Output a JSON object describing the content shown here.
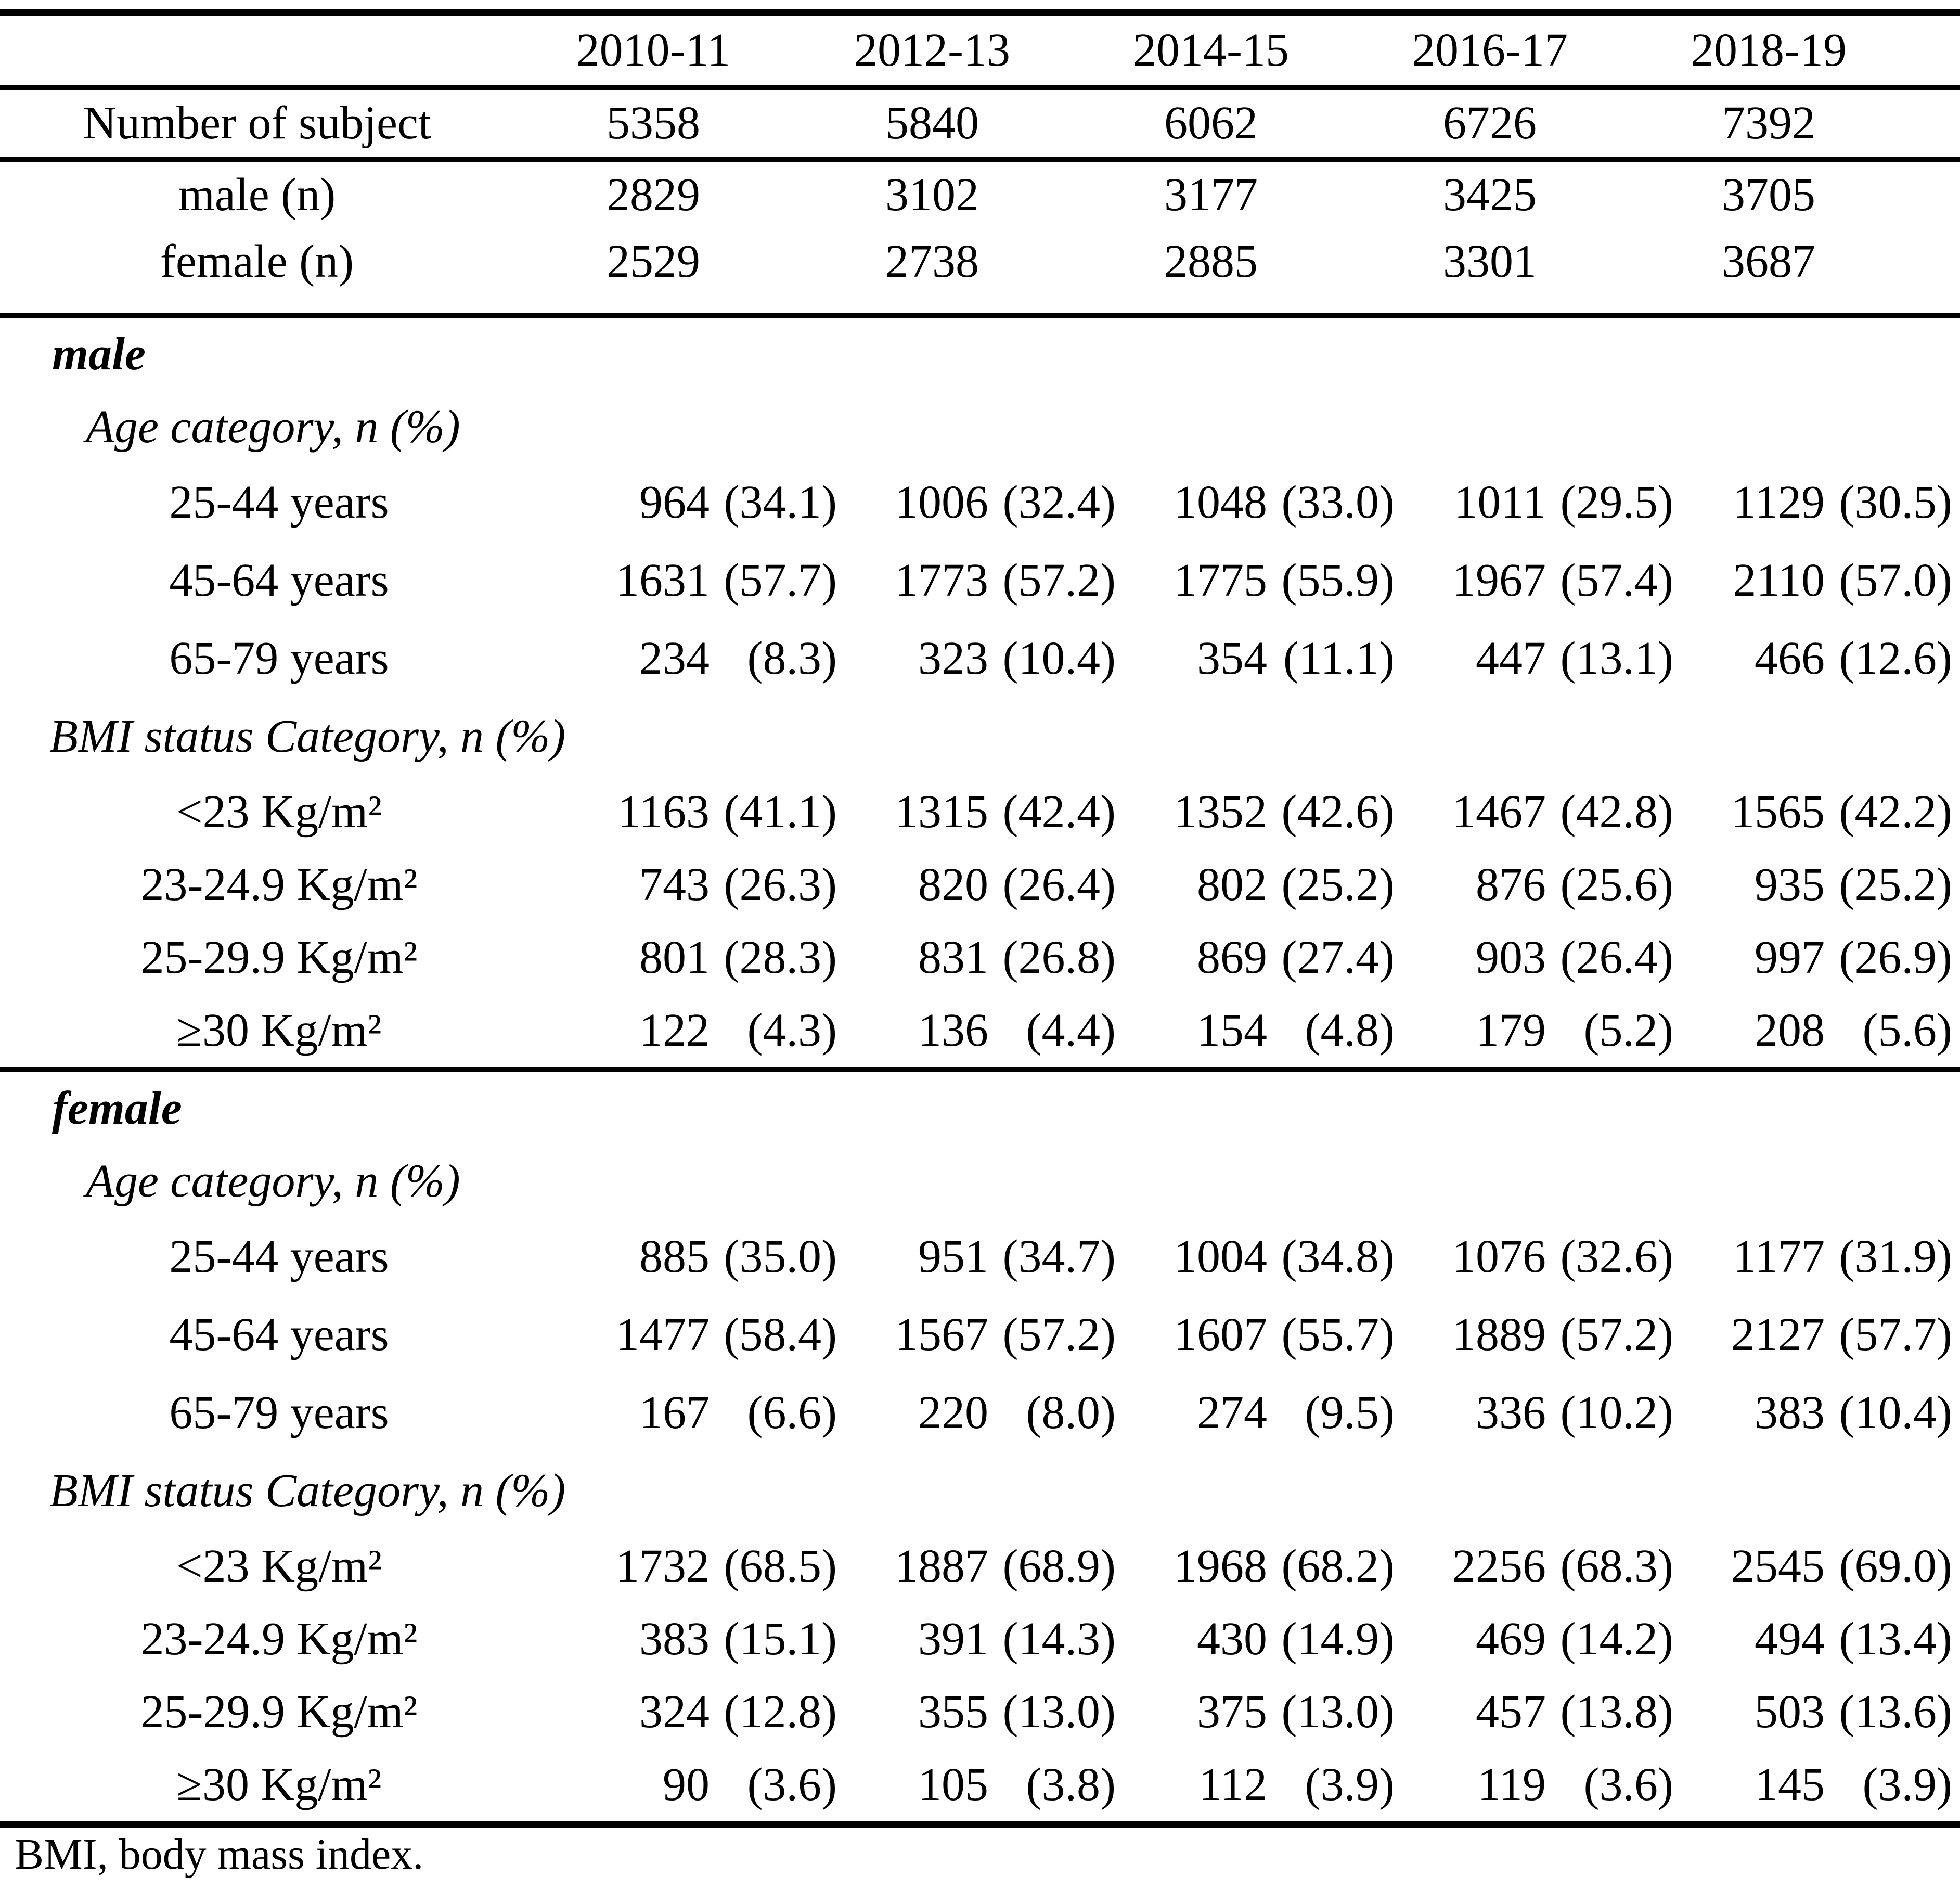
{
  "table": {
    "col_headers": [
      "2010-11",
      "2012-13",
      "2014-15",
      "2016-17",
      "2018-19"
    ],
    "summary_rows": [
      {
        "label": "Number of subject",
        "values": [
          "5358",
          "5840",
          "6062",
          "6726",
          "7392"
        ]
      },
      {
        "label": "male (n)",
        "values": [
          "2829",
          "3102",
          "3177",
          "3425",
          "3705"
        ]
      },
      {
        "label": "female (n)",
        "values": [
          "2529",
          "2738",
          "2885",
          "3301",
          "3687"
        ]
      }
    ],
    "sections": [
      {
        "title": "male",
        "groups": [
          {
            "heading": "Age category, n (%)",
            "rows": [
              {
                "label": "25-44 years",
                "n": [
                  "964",
                  "1006",
                  "1048",
                  "1011",
                  "1129"
                ],
                "pct": [
                  "(34.1)",
                  "(32.4)",
                  "(33.0)",
                  "(29.5)",
                  "(30.5)"
                ]
              },
              {
                "label": "45-64 years",
                "n": [
                  "1631",
                  "1773",
                  "1775",
                  "1967",
                  "2110"
                ],
                "pct": [
                  "(57.7)",
                  "(57.2)",
                  "(55.9)",
                  "(57.4)",
                  "(57.0)"
                ]
              },
              {
                "label": "65-79 years",
                "n": [
                  "234",
                  "323",
                  "354",
                  "447",
                  "466"
                ],
                "pct": [
                  "(8.3)",
                  "(10.4)",
                  "(11.1)",
                  "(13.1)",
                  "(12.6)"
                ]
              }
            ]
          },
          {
            "heading": "BMI status Category, n (%)",
            "rows": [
              {
                "label": "<23 Kg/m²",
                "n": [
                  "1163",
                  "1315",
                  "1352",
                  "1467",
                  "1565"
                ],
                "pct": [
                  "(41.1)",
                  "(42.4)",
                  "(42.6)",
                  "(42.8)",
                  "(42.2)"
                ]
              },
              {
                "label": "23-24.9 Kg/m²",
                "n": [
                  "743",
                  "820",
                  "802",
                  "876",
                  "935"
                ],
                "pct": [
                  "(26.3)",
                  "(26.4)",
                  "(25.2)",
                  "(25.6)",
                  "(25.2)"
                ]
              },
              {
                "label": "25-29.9 Kg/m²",
                "n": [
                  "801",
                  "831",
                  "869",
                  "903",
                  "997"
                ],
                "pct": [
                  "(28.3)",
                  "(26.8)",
                  "(27.4)",
                  "(26.4)",
                  "(26.9)"
                ]
              },
              {
                "label": "≥30 Kg/m²",
                "n": [
                  "122",
                  "136",
                  "154",
                  "179",
                  "208"
                ],
                "pct": [
                  "(4.3)",
                  "(4.4)",
                  "(4.8)",
                  "(5.2)",
                  "(5.6)"
                ]
              }
            ]
          }
        ]
      },
      {
        "title": "female",
        "groups": [
          {
            "heading": "Age category, n (%)",
            "rows": [
              {
                "label": "25-44 years",
                "n": [
                  "885",
                  "951",
                  "1004",
                  "1076",
                  "1177"
                ],
                "pct": [
                  "(35.0)",
                  "(34.7)",
                  "(34.8)",
                  "(32.6)",
                  "(31.9)"
                ]
              },
              {
                "label": "45-64 years",
                "n": [
                  "1477",
                  "1567",
                  "1607",
                  "1889",
                  "2127"
                ],
                "pct": [
                  "(58.4)",
                  "(57.2)",
                  "(55.7)",
                  "(57.2)",
                  "(57.7)"
                ]
              },
              {
                "label": "65-79 years",
                "n": [
                  "167",
                  "220",
                  "274",
                  "336",
                  "383"
                ],
                "pct": [
                  "(6.6)",
                  "(8.0)",
                  "(9.5)",
                  "(10.2)",
                  "(10.4)"
                ]
              }
            ]
          },
          {
            "heading": "BMI status Category, n (%)",
            "rows": [
              {
                "label": "<23 Kg/m²",
                "n": [
                  "1732",
                  "1887",
                  "1968",
                  "2256",
                  "2545"
                ],
                "pct": [
                  "(68.5)",
                  "(68.9)",
                  "(68.2)",
                  "(68.3)",
                  "(69.0)"
                ]
              },
              {
                "label": "23-24.9 Kg/m²",
                "n": [
                  "383",
                  "391",
                  "430",
                  "469",
                  "494"
                ],
                "pct": [
                  "(15.1)",
                  "(14.3)",
                  "(14.9)",
                  "(14.2)",
                  "(13.4)"
                ]
              },
              {
                "label": "25-29.9 Kg/m²",
                "n": [
                  "324",
                  "355",
                  "375",
                  "457",
                  "503"
                ],
                "pct": [
                  "(12.8)",
                  "(13.0)",
                  "(13.0)",
                  "(13.8)",
                  "(13.6)"
                ]
              },
              {
                "label": "≥30 Kg/m²",
                "n": [
                  "90",
                  "105",
                  "112",
                  "119",
                  "145"
                ],
                "pct": [
                  "(3.6)",
                  "(3.8)",
                  "(3.9)",
                  "(3.6)",
                  "(3.9)"
                ]
              }
            ]
          }
        ]
      }
    ],
    "footnote": "BMI, body mass index.",
    "colors": {
      "text": "#000000",
      "background": "#ffffff",
      "rule": "#000000"
    }
  }
}
